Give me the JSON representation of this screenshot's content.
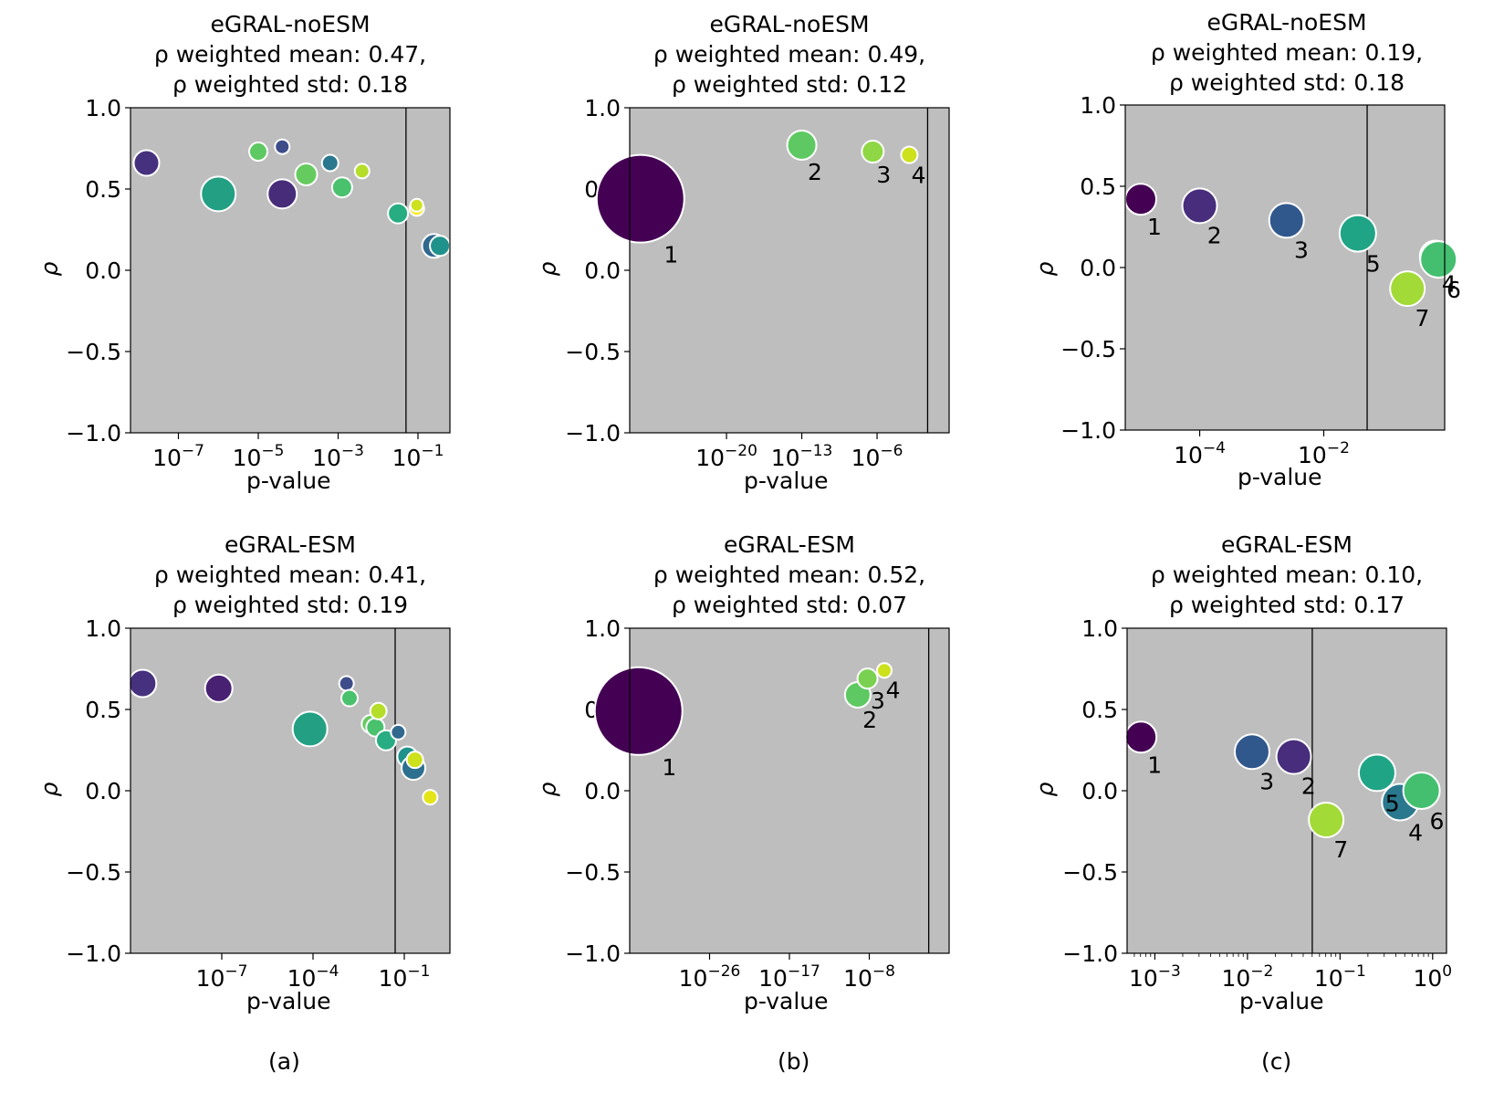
{
  "colors": {
    "plot_background": "#bebebe",
    "marker_edge": "#ffffff",
    "axis": "#000000"
  },
  "chart_data": [
    {
      "panel": "a-top",
      "type": "scatter",
      "x_scale": "log",
      "title": [
        "eGRAL-noESM",
        "ρ weighted mean: 0.47,",
        "ρ weighted std: 0.18"
      ],
      "xlabel": "p-value",
      "ylabel": "ρ",
      "xlim_log10": [
        -8.2,
        -0.2
      ],
      "ylim": [
        -1.0,
        1.0
      ],
      "y_ticks": [
        1.0,
        0.5,
        0.0,
        -0.5,
        -1.0
      ],
      "y_tick_labels": [
        "1.0",
        "0.5",
        "0.0",
        "−0.5",
        "−1.0"
      ],
      "x_ticks_log10": [
        -7,
        -5,
        -3,
        -1
      ],
      "x_tick_labels": [
        [
          "10",
          "−7"
        ],
        [
          "10",
          "−5"
        ],
        [
          "10",
          "−3"
        ],
        [
          "10",
          "−1"
        ]
      ],
      "threshold_log10": -1.3,
      "points": [
        {
          "x": -7.8,
          "y": 0.66,
          "size": 14,
          "color": "#46317e"
        },
        {
          "x": -6.0,
          "y": 0.47,
          "size": 19,
          "color": "#23a083"
        },
        {
          "x": -5.0,
          "y": 0.73,
          "size": 10,
          "color": "#5ec962"
        },
        {
          "x": -4.4,
          "y": 0.76,
          "size": 8,
          "color": "#3e4c8a"
        },
        {
          "x": -4.4,
          "y": 0.47,
          "size": 16,
          "color": "#472c7a"
        },
        {
          "x": -3.8,
          "y": 0.59,
          "size": 12,
          "color": "#65cb5e"
        },
        {
          "x": -3.2,
          "y": 0.66,
          "size": 9,
          "color": "#2a788e"
        },
        {
          "x": -2.9,
          "y": 0.51,
          "size": 11,
          "color": "#4ac16d"
        },
        {
          "x": -2.4,
          "y": 0.61,
          "size": 8,
          "color": "#b5de2b"
        },
        {
          "x": -1.5,
          "y": 0.35,
          "size": 11,
          "color": "#27ad81"
        },
        {
          "x": -1.03,
          "y": 0.38,
          "size": 8,
          "color": "#fde725"
        },
        {
          "x": -1.03,
          "y": 0.4,
          "size": 7,
          "color": "#cde11d"
        },
        {
          "x": -0.6,
          "y": 0.15,
          "size": 13,
          "color": "#31688e"
        },
        {
          "x": -0.45,
          "y": 0.15,
          "size": 11,
          "color": "#20928c"
        }
      ]
    },
    {
      "panel": "b-top",
      "type": "scatter",
      "x_scale": "log",
      "title": [
        "eGRAL-noESM",
        "ρ weighted mean: 0.49,",
        "ρ weighted std: 0.12"
      ],
      "xlabel": "p-value",
      "ylabel": "ρ",
      "xlim_log10": [
        -29,
        0.7
      ],
      "ylim": [
        -1.0,
        1.0
      ],
      "y_ticks": [
        1.0,
        0.5,
        0.0,
        -0.5,
        -1.0
      ],
      "y_tick_labels": [
        "1.0",
        "0.5",
        "0.0",
        "−0.5",
        "−1.0"
      ],
      "x_ticks_log10": [
        -20,
        -13,
        -6
      ],
      "x_tick_labels": [
        [
          "10",
          "−20"
        ],
        [
          "10",
          "−13"
        ],
        [
          "10",
          "−6"
        ]
      ],
      "threshold_log10": -1.3,
      "points": [
        {
          "x": -28,
          "y": 0.44,
          "size": 48,
          "color": "#440154",
          "label": "1"
        },
        {
          "x": -13.0,
          "y": 0.77,
          "size": 16,
          "color": "#5ec962",
          "label": "2"
        },
        {
          "x": -6.4,
          "y": 0.73,
          "size": 12,
          "color": "#8fd744",
          "label": "3"
        },
        {
          "x": -3.0,
          "y": 0.71,
          "size": 9,
          "color": "#cde11d",
          "label": "4"
        }
      ]
    },
    {
      "panel": "c-top",
      "type": "scatter",
      "x_scale": "log",
      "title": [
        "eGRAL-noESM",
        "ρ weighted mean: 0.19,",
        "ρ weighted std: 0.18"
      ],
      "xlabel": "p-value",
      "ylabel": "ρ",
      "xlim_log10": [
        -5.2,
        -0.05
      ],
      "ylim": [
        -1.0,
        1.0
      ],
      "y_ticks": [
        1.0,
        0.5,
        0.0,
        -0.5,
        -1.0
      ],
      "y_tick_labels": [
        "1.0",
        "0.5",
        "0.0",
        "−0.5",
        "−1.0"
      ],
      "x_ticks_log10": [
        -4,
        -2
      ],
      "x_tick_labels": [
        [
          "10",
          "−4"
        ],
        [
          "10",
          "−2"
        ]
      ],
      "threshold_log10": -1.3,
      "points": [
        {
          "x": -4.95,
          "y": 0.42,
          "size": 17,
          "color": "#440154",
          "label": "1"
        },
        {
          "x": -4.0,
          "y": 0.38,
          "size": 19,
          "color": "#472d7b",
          "label": "2"
        },
        {
          "x": -2.6,
          "y": 0.29,
          "size": 19,
          "color": "#31588c",
          "label": "3"
        },
        {
          "x": -0.2,
          "y": 0.07,
          "size": 17,
          "color": "#2a788e",
          "label": "4"
        },
        {
          "x": -1.45,
          "y": 0.21,
          "size": 20,
          "color": "#20a486",
          "label": "5"
        },
        {
          "x": -0.15,
          "y": 0.05,
          "size": 20,
          "color": "#44bf70",
          "label": "6"
        },
        {
          "x": -0.65,
          "y": -0.13,
          "size": 19,
          "color": "#a2da37",
          "label": "7"
        }
      ]
    },
    {
      "panel": "a-bottom",
      "type": "scatter",
      "x_scale": "log",
      "title": [
        "eGRAL-ESM",
        "ρ weighted mean: 0.41,",
        "ρ weighted std: 0.19"
      ],
      "xlabel": "p-value",
      "ylabel": "ρ",
      "xlim_log10": [
        -10,
        0.5
      ],
      "ylim": [
        -1.0,
        1.0
      ],
      "y_ticks": [
        1.0,
        0.5,
        0.0,
        -0.5,
        -1.0
      ],
      "y_tick_labels": [
        "1.0",
        "0.5",
        "0.0",
        "−0.5",
        "−1.0"
      ],
      "x_ticks_log10": [
        -7,
        -4,
        -1
      ],
      "x_tick_labels": [
        [
          "10",
          "−7"
        ],
        [
          "10",
          "−4"
        ],
        [
          "10",
          "−1"
        ]
      ],
      "threshold_log10": -1.3,
      "points": [
        {
          "x": -9.6,
          "y": 0.66,
          "size": 15,
          "color": "#46317e"
        },
        {
          "x": -7.1,
          "y": 0.63,
          "size": 15,
          "color": "#482173"
        },
        {
          "x": -4.1,
          "y": 0.38,
          "size": 19,
          "color": "#23a083"
        },
        {
          "x": -2.9,
          "y": 0.66,
          "size": 8,
          "color": "#3e4c8a"
        },
        {
          "x": -2.8,
          "y": 0.57,
          "size": 9,
          "color": "#4ac16d"
        },
        {
          "x": -2.1,
          "y": 0.41,
          "size": 10,
          "color": "#65cb5e"
        },
        {
          "x": -1.95,
          "y": 0.39,
          "size": 10,
          "color": "#4ac16d"
        },
        {
          "x": -1.85,
          "y": 0.49,
          "size": 9,
          "color": "#b5de2b"
        },
        {
          "x": -1.6,
          "y": 0.31,
          "size": 11,
          "color": "#27ad81"
        },
        {
          "x": -1.2,
          "y": 0.36,
          "size": 8,
          "color": "#31688e"
        },
        {
          "x": -0.9,
          "y": 0.21,
          "size": 11,
          "color": "#20928c"
        },
        {
          "x": -0.7,
          "y": 0.14,
          "size": 13,
          "color": "#2d6f8e"
        },
        {
          "x": -0.65,
          "y": 0.19,
          "size": 9,
          "color": "#cde11d"
        },
        {
          "x": -0.15,
          "y": -0.04,
          "size": 8,
          "color": "#e4e419"
        }
      ]
    },
    {
      "panel": "b-bottom",
      "type": "scatter",
      "x_scale": "log",
      "title": [
        "eGRAL-ESM",
        "ρ weighted mean: 0.52,",
        "ρ weighted std: 0.07"
      ],
      "xlabel": "p-value",
      "ylabel": "ρ",
      "xlim_log10": [
        -35,
        1.0
      ],
      "ylim": [
        -1.0,
        1.0
      ],
      "y_ticks": [
        1.0,
        0.5,
        0.0,
        -0.5,
        -1.0
      ],
      "y_tick_labels": [
        "1.0",
        "0.5",
        "0.0",
        "−0.5",
        "−1.0"
      ],
      "x_ticks_log10": [
        -26,
        -17,
        -8
      ],
      "x_tick_labels": [
        [
          "10",
          "−26"
        ],
        [
          "10",
          "−17"
        ],
        [
          "10",
          "−8"
        ]
      ],
      "threshold_log10": -1.3,
      "points": [
        {
          "x": -34,
          "y": 0.49,
          "size": 48,
          "color": "#440154",
          "label": "1"
        },
        {
          "x": -9.3,
          "y": 0.59,
          "size": 14,
          "color": "#5ec962",
          "label": "2"
        },
        {
          "x": -8.2,
          "y": 0.69,
          "size": 11,
          "color": "#7ad151",
          "label": "3"
        },
        {
          "x": -6.3,
          "y": 0.74,
          "size": 8,
          "color": "#cde11d",
          "label": "4"
        }
      ]
    },
    {
      "panel": "c-bottom",
      "type": "scatter",
      "x_scale": "log",
      "title": [
        "eGRAL-ESM",
        "ρ weighted mean: 0.10,",
        "ρ weighted std: 0.17"
      ],
      "xlabel": "p-value",
      "ylabel": "ρ",
      "xlim_log10": [
        -3.3,
        0.15
      ],
      "ylim": [
        -1.0,
        1.0
      ],
      "y_ticks": [
        1.0,
        0.5,
        0.0,
        -0.5,
        -1.0
      ],
      "y_tick_labels": [
        "1.0",
        "0.5",
        "0.0",
        "−0.5",
        "−1.0"
      ],
      "x_ticks_log10": [
        -3,
        -2,
        -1,
        0
      ],
      "x_tick_labels": [
        [
          "10",
          "−3"
        ],
        [
          "10",
          "−2"
        ],
        [
          "10",
          "−1"
        ],
        [
          "10",
          "0"
        ]
      ],
      "minor_ticks": true,
      "threshold_log10": -1.3,
      "points": [
        {
          "x": -3.15,
          "y": 0.33,
          "size": 17,
          "color": "#440154",
          "label": "1"
        },
        {
          "x": -1.5,
          "y": 0.21,
          "size": 19,
          "color": "#472d7b",
          "label": "2"
        },
        {
          "x": -1.95,
          "y": 0.24,
          "size": 19,
          "color": "#31588c",
          "label": "3"
        },
        {
          "x": -0.35,
          "y": -0.07,
          "size": 20,
          "color": "#2a788e",
          "label": "4"
        },
        {
          "x": -0.6,
          "y": 0.11,
          "size": 20,
          "color": "#20a486",
          "label": "5"
        },
        {
          "x": -0.12,
          "y": 0.0,
          "size": 20,
          "color": "#44bf70",
          "label": "6"
        },
        {
          "x": -1.15,
          "y": -0.18,
          "size": 19,
          "color": "#a2da37",
          "label": "7"
        }
      ]
    }
  ],
  "captions": [
    "(a)",
    "(b)",
    "(c)"
  ]
}
